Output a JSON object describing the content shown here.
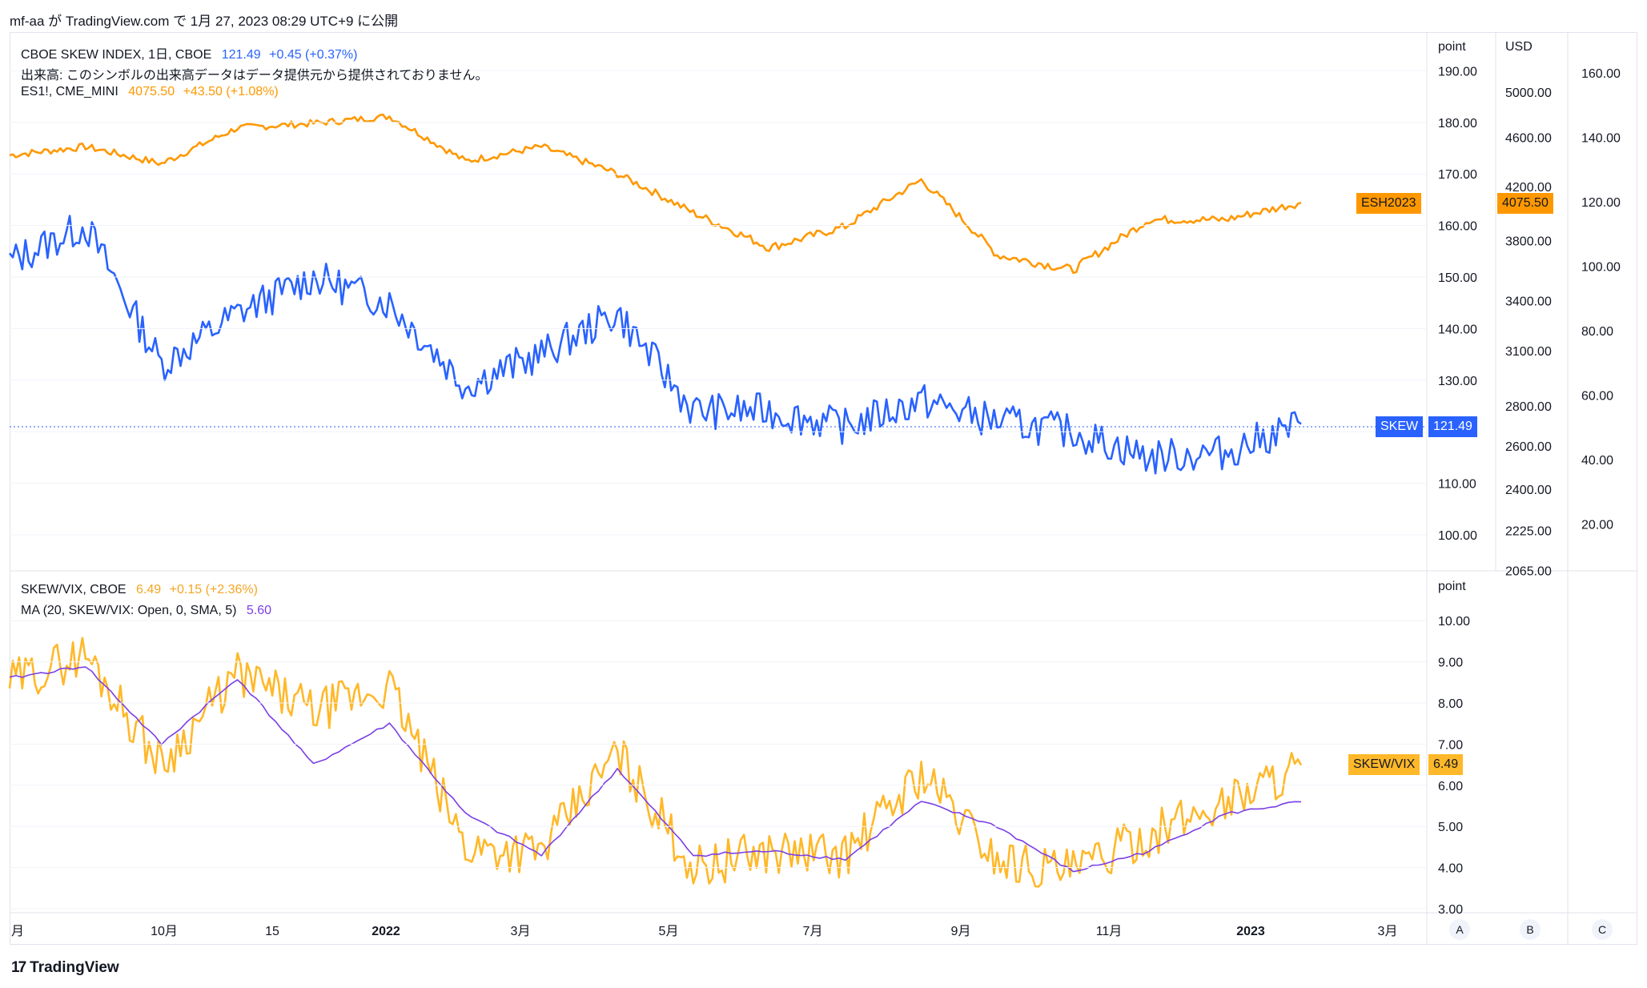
{
  "header": {
    "text": "mf-aa が TradingView.com で 1月 27, 2023 08:29 UTC+9 に公開"
  },
  "legend_top": {
    "line1": {
      "symbol": "CBOE SKEW INDEX, 1日, CBOE",
      "value": "121.49",
      "change": "+0.45 (+0.37%)"
    },
    "line2": {
      "text": "出来高: このシンボルの出来高データはデータ提供元から提供されておりません。"
    },
    "line3": {
      "symbol": "ES1!, CME_MINI",
      "value": "4075.50",
      "change": "+43.50 (+1.08%)"
    }
  },
  "legend_bottom": {
    "line1": {
      "symbol": "SKEW/VIX, CBOE",
      "value": "6.49",
      "change": "+0.15 (+2.36%)"
    },
    "line2": {
      "symbol": "MA (20, SKEW/VIX: Open, 0, SMA, 5)",
      "value": "5.60"
    }
  },
  "axes": {
    "top_left_unit": "point",
    "top_mid_unit": "USD",
    "bottom_unit": "point",
    "skew_ticks": [
      "190.00",
      "180.00",
      "170.00",
      "160.00",
      "150.00",
      "140.00",
      "130.00",
      "120.00",
      "110.00",
      "100.00"
    ],
    "es_ticks": [
      "5000.00",
      "4600.00",
      "4200.00",
      "3800.00",
      "3400.00",
      "3100.00",
      "2800.00",
      "2600.00",
      "2400.00",
      "2225.00",
      "2065.00"
    ],
    "c_ticks": [
      "160.00",
      "140.00",
      "120.00",
      "100.00",
      "80.00",
      "60.00",
      "40.00",
      "20.00"
    ],
    "ratio_ticks": [
      "10.00",
      "9.00",
      "8.00",
      "7.00",
      "6.00",
      "5.00",
      "4.00",
      "3.00"
    ],
    "x_ticks": [
      "月",
      "10月",
      "15",
      "2022",
      "3月",
      "5月",
      "7月",
      "9月",
      "11月",
      "2023",
      "3月"
    ],
    "corner_buttons": [
      "A",
      "B",
      "C"
    ]
  },
  "badges": {
    "esh": {
      "label": "ESH2023",
      "value": "4075.50"
    },
    "skew": {
      "label": "SKEW",
      "value": "121.49"
    },
    "ratio": {
      "label": "SKEW/VIX",
      "value": "6.49"
    }
  },
  "colors": {
    "es": "#ff9800",
    "skew": "#2962ff",
    "ratio": "#ffb829",
    "ma": "#7b3fe4",
    "grid": "#f0f3fa"
  },
  "footer": {
    "logo_text": "TradingView"
  },
  "chart_data": [
    {
      "type": "line",
      "name": "ES1! (ESH2023)",
      "x": [
        "2021-08",
        "2021-09",
        "2021-10",
        "2021-11",
        "2021-12",
        "2022-01",
        "2022-02",
        "2022-03",
        "2022-04",
        "2022-05",
        "2022-06",
        "2022-07",
        "2022-08",
        "2022-09",
        "2022-10",
        "2022-11",
        "2022-12",
        "2023-01"
      ],
      "values": [
        4450,
        4520,
        4380,
        4680,
        4720,
        4780,
        4400,
        4520,
        4300,
        4000,
        3750,
        3900,
        4250,
        3700,
        3600,
        3950,
        3950,
        4075.5
      ],
      "unit": "USD"
    },
    {
      "type": "line",
      "name": "SKEW",
      "x": [
        "2021-08",
        "2021-09",
        "2021-10",
        "2021-11",
        "2021-12",
        "2022-01",
        "2022-02",
        "2022-03",
        "2022-04",
        "2022-05",
        "2022-06",
        "2022-07",
        "2022-08",
        "2022-09",
        "2022-10",
        "2022-11",
        "2022-12",
        "2023-01"
      ],
      "values": [
        153,
        160,
        133,
        143,
        150,
        145,
        129,
        135,
        143,
        124,
        124,
        121,
        126,
        122,
        120,
        115,
        116,
        121.49
      ],
      "unit": "point"
    },
    {
      "type": "line",
      "name": "SKEW/VIX",
      "x": [
        "2021-08",
        "2021-09",
        "2021-10",
        "2021-11",
        "2021-12",
        "2022-01",
        "2022-02",
        "2022-03",
        "2022-04",
        "2022-05",
        "2022-06",
        "2022-07",
        "2022-08",
        "2022-09",
        "2022-10",
        "2022-11",
        "2022-12",
        "2023-01"
      ],
      "values": [
        8.5,
        9.2,
        6.5,
        8.7,
        7.8,
        8.4,
        4.5,
        4.4,
        6.8,
        4.0,
        4.4,
        4.3,
        6.3,
        4.2,
        3.9,
        4.8,
        5.6,
        6.49
      ],
      "unit": "point"
    },
    {
      "type": "line",
      "name": "MA (20, SKEW/VIX: Open, 0, SMA, 5)",
      "x": [
        "2021-08",
        "2021-09",
        "2021-10",
        "2021-11",
        "2021-12",
        "2022-01",
        "2022-02",
        "2022-03",
        "2022-04",
        "2022-05",
        "2022-06",
        "2022-07",
        "2022-08",
        "2022-09",
        "2022-10",
        "2022-11",
        "2022-12",
        "2023-01"
      ],
      "values": [
        8.6,
        8.9,
        7.0,
        8.6,
        6.5,
        7.5,
        5.3,
        4.3,
        6.4,
        4.3,
        4.4,
        4.2,
        5.6,
        5.0,
        3.9,
        4.4,
        5.3,
        5.6
      ],
      "unit": "point"
    }
  ]
}
